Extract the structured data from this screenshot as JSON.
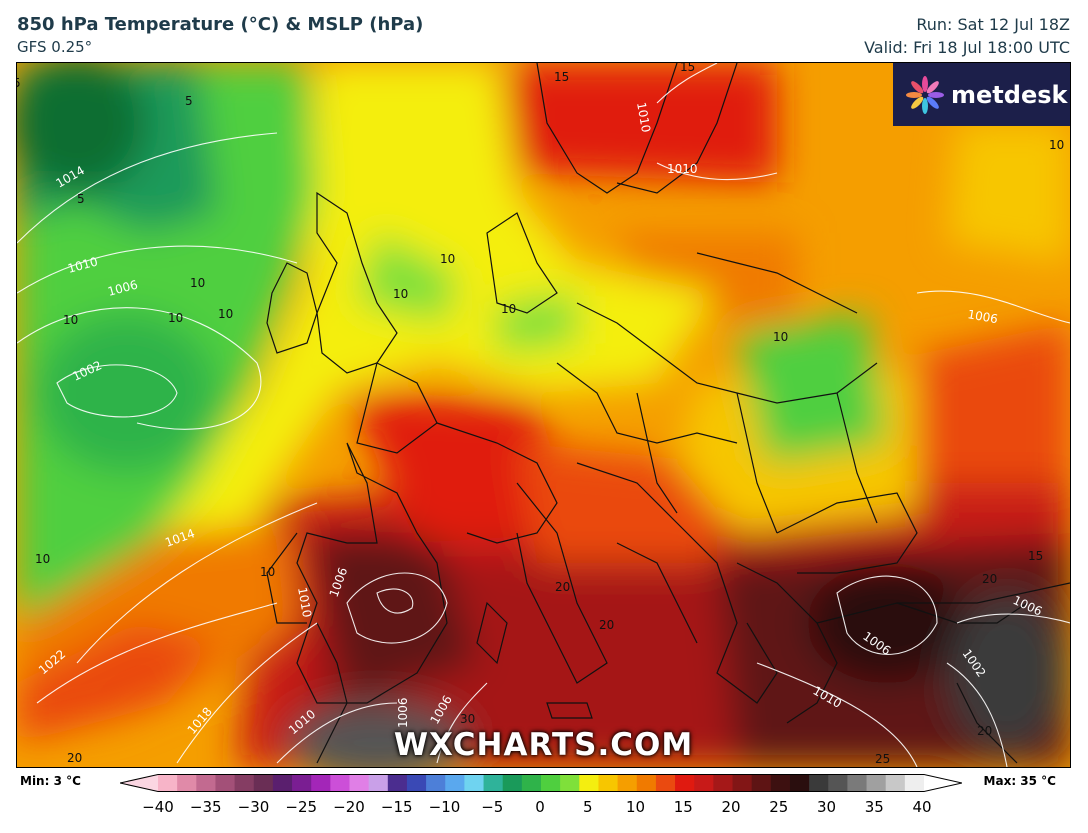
{
  "header": {
    "title": "850 hPa Temperature (°C) & MSLP (hPa)",
    "model": "GFS 0.25°",
    "run": "Run: Sat 12 Jul 18Z",
    "valid": "Valid: Fri 18 Jul 18:00 UTC"
  },
  "logo": {
    "text": "metdesk",
    "icon": "metdesk-pinwheel-icon"
  },
  "watermark": "WXCHARTS.COM",
  "legend": {
    "min_label": "Min: 3 °C",
    "max_label": "Max: 35 °C",
    "ticks": [
      "−40",
      "−35",
      "−30",
      "−25",
      "−20",
      "−15",
      "−10",
      "−5",
      "0",
      "5",
      "10",
      "15",
      "20",
      "25",
      "30",
      "35",
      "40"
    ],
    "tick_values": [
      -40,
      -35,
      -30,
      -25,
      -20,
      -15,
      -10,
      -5,
      0,
      5,
      10,
      15,
      20,
      25,
      30,
      35,
      40
    ],
    "colors": [
      "#f7b4c8",
      "#e08aa8",
      "#c26a90",
      "#a35078",
      "#853d63",
      "#6a2e55",
      "#5a1f6e",
      "#7a1e92",
      "#a326b8",
      "#cc4fd8",
      "#e07fe6",
      "#c9a0e8",
      "#4b2d8f",
      "#3a49b5",
      "#4d7fd8",
      "#5aa8ee",
      "#6fd3f0",
      "#2fb39a",
      "#1a9a5a",
      "#2fb34a",
      "#4fcf3f",
      "#7fe03a",
      "#f4ee10",
      "#f7c600",
      "#f59e00",
      "#f07a00",
      "#ea4a10",
      "#e01a10",
      "#c81a18",
      "#a51818",
      "#821616",
      "#5e1414",
      "#3d1010",
      "#2a0e0e",
      "#3a3a3a",
      "#555555",
      "#7a7a7a",
      "#a0a0a0",
      "#c8c8c8",
      "#eeeeee"
    ]
  },
  "map": {
    "isobar_labels": [
      "1014",
      "1010",
      "1006",
      "1002",
      "1010",
      "1006",
      "1014",
      "1010",
      "1006",
      "1022",
      "1018",
      "1010",
      "1006",
      "1010",
      "1006",
      "1006",
      "1002",
      "1006",
      "1010"
    ],
    "temp_labels": [
      "5",
      "5",
      "5",
      "15",
      "15",
      "10",
      "10",
      "10",
      "10",
      "10",
      "10",
      "10",
      "10",
      "10",
      "10",
      "10",
      "15",
      "20",
      "20",
      "20",
      "20",
      "20",
      "25",
      "30"
    ]
  }
}
